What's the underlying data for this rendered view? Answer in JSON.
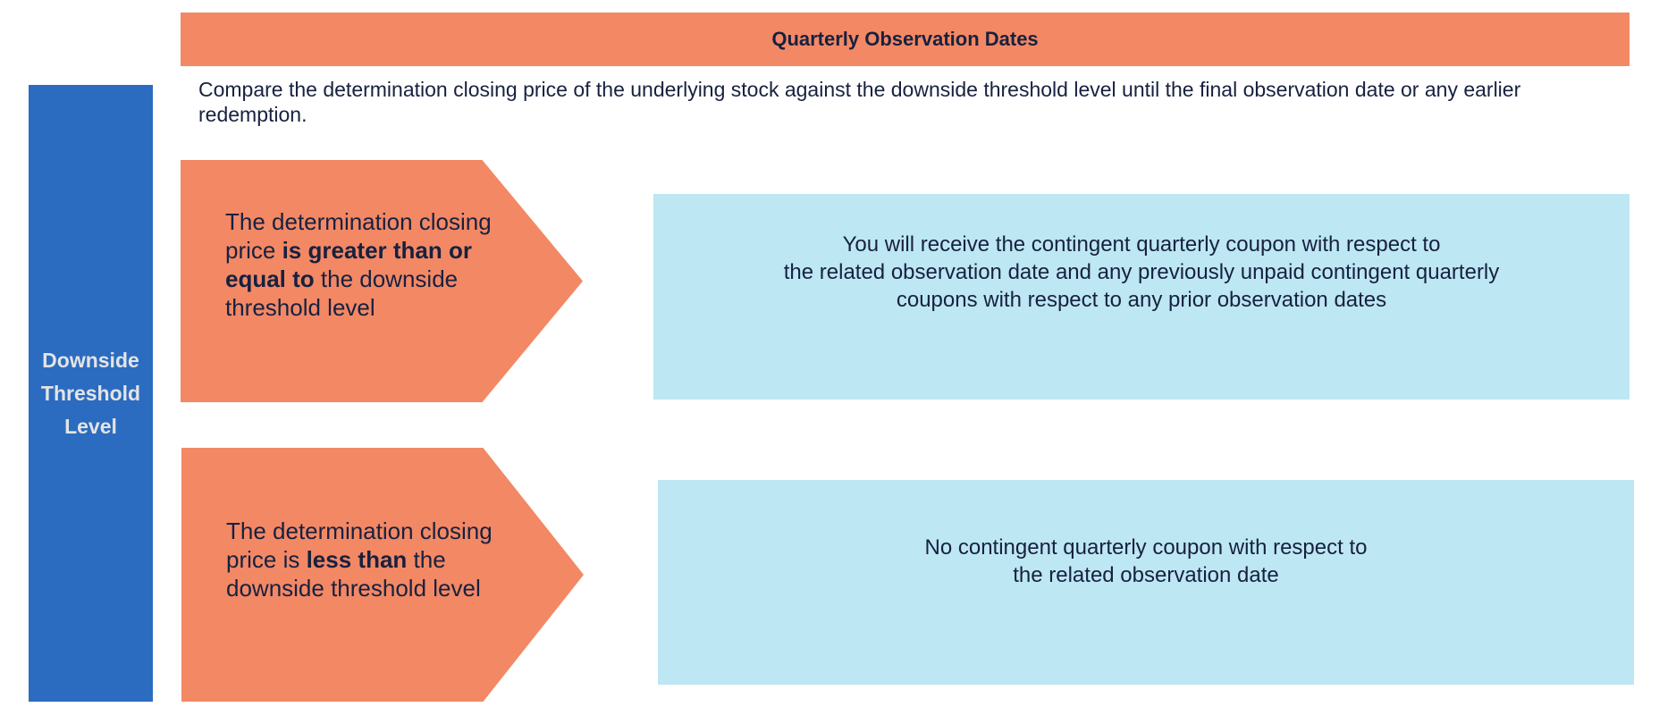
{
  "header": {
    "title": "Quarterly Observation Dates"
  },
  "intro": "Compare the determination closing price of the underlying stock against the downside threshold level until the final observation date or any earlier redemption.",
  "sidebar": {
    "label_lines": [
      "Downside",
      "Threshold",
      "Level"
    ]
  },
  "conditions": [
    {
      "parts": [
        "The determination closing price ",
        "is greater than or equal to",
        " the downside threshold level"
      ],
      "outcome_lines": [
        "You will receive the contingent quarterly coupon with respect to",
        "the related observation date and any previously unpaid contingent quarterly",
        "coupons with respect to any prior observation dates"
      ]
    },
    {
      "parts": [
        "The determination closing price is ",
        "less than",
        " the downside threshold level"
      ],
      "outcome_lines": [
        "No contingent quarterly coupon with respect to",
        "the related observation date"
      ]
    }
  ],
  "colors": {
    "orange": "#f38865",
    "blue": "#2b6cc0",
    "cyan": "#bde7f3",
    "text": "#17213f"
  }
}
